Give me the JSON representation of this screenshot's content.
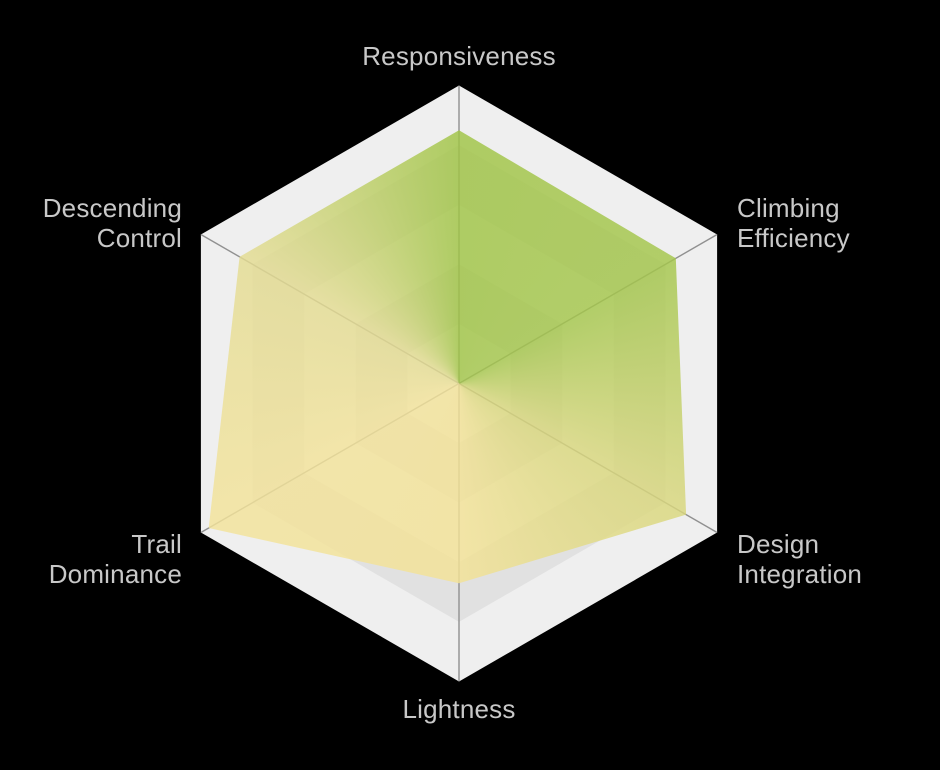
{
  "chart_data": {
    "type": "radar",
    "shape": "polygon",
    "levels": 5,
    "indicators": [
      {
        "label": "Responsiveness"
      },
      {
        "label": "Climbing Efficiency"
      },
      {
        "label": "Design Integration"
      },
      {
        "label": "Lightness"
      },
      {
        "label": "Trail Dominance"
      },
      {
        "label": "Descending Control"
      }
    ],
    "series": [
      {
        "name": "radar-area",
        "max": 100,
        "values": [
          85,
          84,
          88,
          67,
          97,
          85
        ]
      }
    ],
    "legend": "none",
    "grid": "concentric-hexagons-alternating"
  },
  "style": {
    "background_color": "#000000",
    "ring_color_light": "#efefef",
    "ring_color_dark": "#e1e1e1",
    "axis_line_color": "#909090",
    "label_color": "#c8c8c8",
    "area_vertex_colors": [
      "#a0c445",
      "#a4c64b",
      "#d9d77d",
      "#f3e296",
      "#f3e39a",
      "#e4dc92"
    ],
    "area_opacity": 0.82
  }
}
